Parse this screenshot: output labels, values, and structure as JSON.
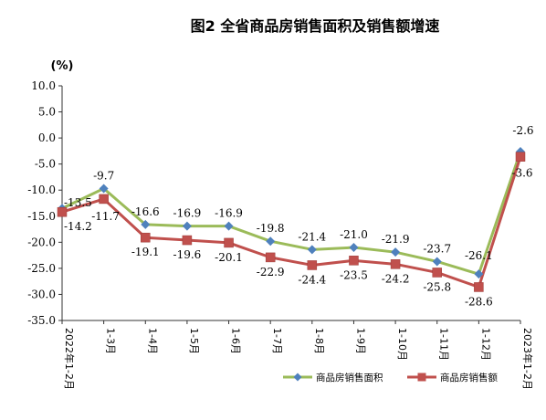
{
  "chart_data": {
    "type": "line",
    "title": "图2 全省商品房销售面积及销售额增速",
    "ylabel": "(%)",
    "xlabel": "",
    "ylim": [
      -35,
      10
    ],
    "yticks": [
      "10.0",
      "5.0",
      "0.0",
      "-5.0",
      "-10.0",
      "-15.0",
      "-20.0",
      "-25.0",
      "-30.0",
      "-35.0"
    ],
    "categories": [
      "2022年1-2月",
      "1-3月",
      "1-4月",
      "1-5月",
      "1-6月",
      "1-7月",
      "1-8月",
      "1-9月",
      "1-10月",
      "1-11月",
      "1-12月",
      "2023年1-2月"
    ],
    "series": [
      {
        "name": "商品房销售面积",
        "color": "#9BBB59",
        "marker_color": "#4F81BD",
        "marker": "diamond",
        "values": [
          -13.5,
          -9.7,
          -16.6,
          -16.9,
          -16.9,
          -19.8,
          -21.4,
          -21.0,
          -21.9,
          -23.7,
          -26.1,
          -2.6
        ],
        "labels": [
          "-13.5",
          "-9.7",
          "-16.6",
          "-16.9",
          "-16.9",
          "-19.8",
          "-21.4",
          "-21.0",
          "-21.9",
          "-23.7",
          "-26.1",
          "-2.6"
        ]
      },
      {
        "name": "商品房销售额",
        "color": "#C0504D",
        "marker_color": "#C0504D",
        "marker": "square",
        "values": [
          -14.2,
          -11.7,
          -19.1,
          -19.6,
          -20.1,
          -22.9,
          -24.4,
          -23.5,
          -24.2,
          -25.8,
          -28.6,
          -3.6
        ],
        "labels": [
          "-14.2",
          "-11.7",
          "-19.1",
          "-19.6",
          "-20.1",
          "-22.9",
          "-24.4",
          "-23.5",
          "-24.2",
          "-25.8",
          "-28.6",
          "-3.6"
        ]
      }
    ],
    "grid": false,
    "legend_position": "bottom-right"
  }
}
